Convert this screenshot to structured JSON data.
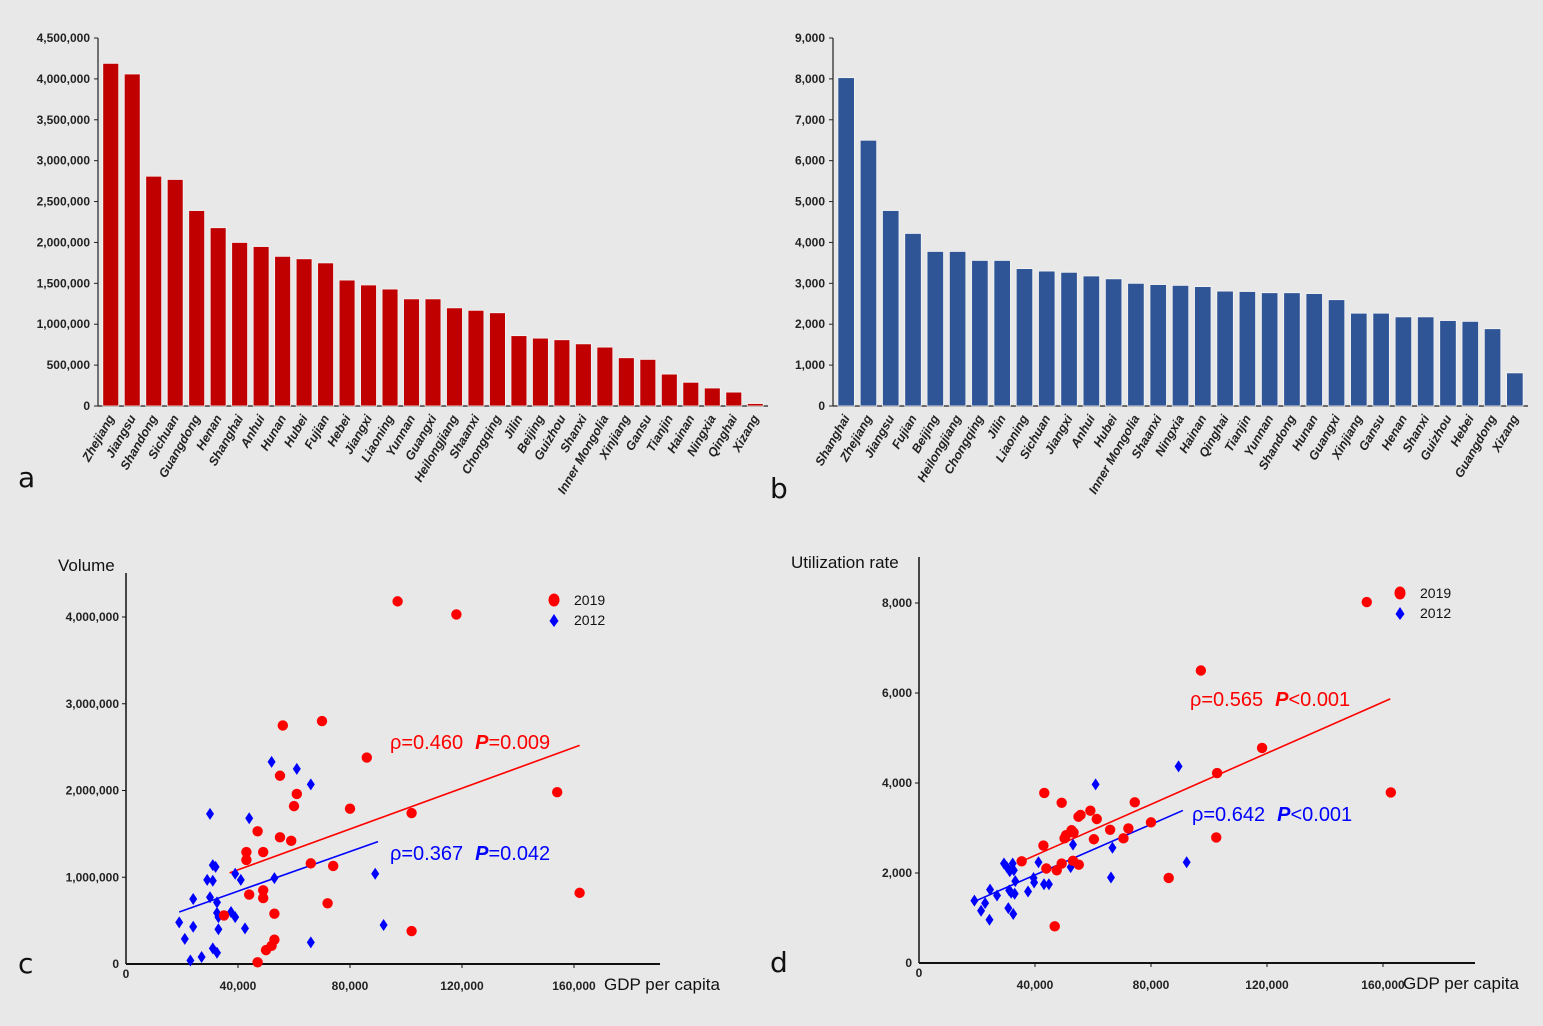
{
  "colors": {
    "background": "#e8e8e8",
    "bar_a": "#c00000",
    "bar_b": "#2f5597",
    "series_2019": "#ff0000",
    "series_2012": "#0000ff"
  },
  "chart_data": [
    {
      "panel": "a",
      "type": "bar",
      "ylim": [
        0,
        4500000
      ],
      "yticks": [
        "0",
        "500,000",
        "1,000,000",
        "1,500,000",
        "2,000,000",
        "2,500,000",
        "3,000,000",
        "3,500,000",
        "4,000,000",
        "4,500,000"
      ],
      "categories": [
        "Zhejiang",
        "Jiangsu",
        "Shandong",
        "Sichuan",
        "Guangdong",
        "Henan",
        "Shanghai",
        "Anhui",
        "Hunan",
        "Hubei",
        "Fujian",
        "Hebei",
        "Jiangxi",
        "Liaoning",
        "Yunnan",
        "Guangxi",
        "Heilongjiang",
        "Shaanxi",
        "Chongqing",
        "Jilin",
        "Beijing",
        "Guizhou",
        "Shanxi",
        "Inner Mongolia",
        "Xinjiang",
        "Gansu",
        "Tianjin",
        "Hainan",
        "Ningxia",
        "Qinghai",
        "Xizang"
      ],
      "values": [
        4190000,
        4060000,
        2810000,
        2770000,
        2390000,
        2180000,
        2000000,
        1950000,
        1830000,
        1800000,
        1750000,
        1540000,
        1480000,
        1430000,
        1310000,
        1310000,
        1200000,
        1170000,
        1140000,
        860000,
        830000,
        810000,
        760000,
        720000,
        590000,
        570000,
        390000,
        290000,
        220000,
        170000,
        30000
      ],
      "color": "#c00000"
    },
    {
      "panel": "b",
      "type": "bar",
      "ylim": [
        0,
        9000
      ],
      "yticks": [
        "0",
        "1,000",
        "2,000",
        "3,000",
        "4,000",
        "5,000",
        "6,000",
        "7,000",
        "8,000",
        "9,000"
      ],
      "categories": [
        "Shanghai",
        "Zhejiang",
        "Jiangsu",
        "Fujian",
        "Beijing",
        "Heilongjiang",
        "Chongqing",
        "Jilin",
        "Liaoning",
        "Sichuan",
        "Jiangxi",
        "Anhui",
        "Hubei",
        "Inner Mongolia",
        "Shaanxi",
        "Ningxia",
        "Hainan",
        "Qinghai",
        "Tianjin",
        "Yunnan",
        "Shandong",
        "Hunan",
        "Guangxi",
        "Xinjiang",
        "Gansu",
        "Henan",
        "Shanxi",
        "Guizhou",
        "Hebei",
        "Guangdong",
        "Xizang"
      ],
      "values": [
        8030,
        6500,
        4780,
        4220,
        3780,
        3780,
        3560,
        3560,
        3360,
        3300,
        3270,
        3180,
        3110,
        3000,
        2970,
        2950,
        2920,
        2810,
        2800,
        2770,
        2770,
        2750,
        2600,
        2270,
        2270,
        2180,
        2180,
        2090,
        2070,
        1890,
        810
      ],
      "color": "#2f5597"
    },
    {
      "panel": "c",
      "type": "scatter",
      "ylabel": "Volume",
      "xlabel": "GDP per capita",
      "xlim": [
        0,
        190000
      ],
      "ylim": [
        0,
        4500000
      ],
      "xticks": [
        "0",
        "40,000",
        "80,000",
        "120,000",
        "160,000"
      ],
      "yticks": [
        "0",
        "1,000,000",
        "2,000,000",
        "3,000,000",
        "4,000,000"
      ],
      "legend_position": "top-right",
      "series": [
        {
          "name": "2019",
          "marker": "circle",
          "color": "#ff0000",
          "points": [
            [
              97000,
              4180000
            ],
            [
              118000,
              4030000
            ],
            [
              70000,
              2800000
            ],
            [
              56000,
              2750000
            ],
            [
              86000,
              2380000
            ],
            [
              55000,
              2170000
            ],
            [
              61000,
              1960000
            ],
            [
              60000,
              1820000
            ],
            [
              80000,
              1790000
            ],
            [
              154000,
              1980000
            ],
            [
              102000,
              1740000
            ],
            [
              47000,
              1530000
            ],
            [
              55000,
              1460000
            ],
            [
              59000,
              1420000
            ],
            [
              43000,
              1290000
            ],
            [
              49000,
              1290000
            ],
            [
              43000,
              1200000
            ],
            [
              66000,
              1160000
            ],
            [
              74000,
              1130000
            ],
            [
              49000,
              850000
            ],
            [
              49000,
              760000
            ],
            [
              44000,
              800000
            ],
            [
              162000,
              820000
            ],
            [
              72000,
              700000
            ],
            [
              35000,
              560000
            ],
            [
              53000,
              580000
            ],
            [
              102000,
              380000
            ],
            [
              53000,
              280000
            ],
            [
              52000,
              210000
            ],
            [
              50000,
              160000
            ],
            [
              47000,
              20000
            ]
          ],
          "trend": [
            [
              37000,
              1050000
            ],
            [
              162000,
              2520000
            ]
          ],
          "annotation": {
            "rho": "ρ=0.460",
            "p_label": "P",
            "p_value": "=0.009"
          }
        },
        {
          "name": "2012",
          "marker": "diamond",
          "color": "#0000ff",
          "points": [
            [
              52000,
              2330000
            ],
            [
              61000,
              2250000
            ],
            [
              66000,
              2070000
            ],
            [
              30000,
              1730000
            ],
            [
              44000,
              1680000
            ],
            [
              31000,
              1140000
            ],
            [
              32000,
              1120000
            ],
            [
              29000,
              970000
            ],
            [
              31000,
              960000
            ],
            [
              39000,
              1040000
            ],
            [
              41000,
              970000
            ],
            [
              53000,
              990000
            ],
            [
              89000,
              1040000
            ],
            [
              24000,
              750000
            ],
            [
              30000,
              770000
            ],
            [
              32500,
              710000
            ],
            [
              19000,
              480000
            ],
            [
              24000,
              430000
            ],
            [
              32500,
              590000
            ],
            [
              33000,
              540000
            ],
            [
              37500,
              600000
            ],
            [
              39000,
              540000
            ],
            [
              33000,
              400000
            ],
            [
              42500,
              410000
            ],
            [
              92000,
              450000
            ],
            [
              21000,
              290000
            ],
            [
              66000,
              250000
            ],
            [
              31000,
              180000
            ],
            [
              32500,
              130000
            ],
            [
              27000,
              80000
            ],
            [
              23000,
              40000
            ]
          ],
          "trend": [
            [
              19000,
              600000
            ],
            [
              90000,
              1410000
            ]
          ],
          "annotation": {
            "rho": "ρ=0.367",
            "p_label": "P",
            "p_value": "=0.042"
          }
        }
      ]
    },
    {
      "panel": "d",
      "type": "scatter",
      "ylabel": "Utilization rate",
      "xlabel": "GDP per capita",
      "xlim": [
        0,
        190000
      ],
      "ylim": [
        0,
        9000
      ],
      "xticks": [
        "0",
        "40,000",
        "80,000",
        "120,000",
        "160,000"
      ],
      "yticks": [
        "0",
        "2,000",
        "4,000",
        "6,000",
        "8,000"
      ],
      "legend_position": "top-right",
      "series": [
        {
          "name": "2019",
          "marker": "circle",
          "color": "#ff0000",
          "points": [
            [
              154400,
              8020
            ],
            [
              97200,
              6500
            ],
            [
              118300,
              4780
            ],
            [
              102800,
              4220
            ],
            [
              162700,
              3790
            ],
            [
              43200,
              3780
            ],
            [
              49200,
              3560
            ],
            [
              74400,
              3570
            ],
            [
              59100,
              3385
            ],
            [
              55700,
              3290
            ],
            [
              55000,
              3250
            ],
            [
              61300,
              3200
            ],
            [
              80000,
              3125
            ],
            [
              52600,
              2950
            ],
            [
              53300,
              2900
            ],
            [
              65900,
              2960
            ],
            [
              72200,
              2990
            ],
            [
              50200,
              2770
            ],
            [
              50700,
              2840
            ],
            [
              60300,
              2750
            ],
            [
              70500,
              2770
            ],
            [
              102500,
              2790
            ],
            [
              42900,
              2610
            ],
            [
              35400,
              2260
            ],
            [
              49200,
              2210
            ],
            [
              53100,
              2270
            ],
            [
              55100,
              2185
            ],
            [
              43900,
              2100
            ],
            [
              47500,
              2060
            ],
            [
              86100,
              1890
            ],
            [
              46800,
              815
            ]
          ],
          "trend": [
            [
              35400,
              2260
            ],
            [
              162500,
              5870
            ]
          ],
          "annotation": {
            "rho": "ρ=0.565",
            "p_label": "P",
            "p_value": "<0.001"
          }
        },
        {
          "name": "2012",
          "marker": "diamond",
          "color": "#0000ff",
          "points": [
            [
              89500,
              4370
            ],
            [
              60900,
              3970
            ],
            [
              53100,
              2630
            ],
            [
              66700,
              2560
            ],
            [
              92300,
              2240
            ],
            [
              41200,
              2240
            ],
            [
              29300,
              2210
            ],
            [
              30300,
              2130
            ],
            [
              32300,
              2210
            ],
            [
              31300,
              2040
            ],
            [
              32700,
              2060
            ],
            [
              52300,
              2130
            ],
            [
              66200,
              1900
            ],
            [
              33200,
              1820
            ],
            [
              39500,
              1890
            ],
            [
              39700,
              1790
            ],
            [
              43100,
              1750
            ],
            [
              44800,
              1750
            ],
            [
              24500,
              1630
            ],
            [
              31100,
              1615
            ],
            [
              33000,
              1540
            ],
            [
              37600,
              1590
            ],
            [
              26900,
              1500
            ],
            [
              31800,
              1560
            ],
            [
              19100,
              1385
            ],
            [
              22800,
              1330
            ],
            [
              21400,
              1160
            ],
            [
              30800,
              1220
            ],
            [
              32500,
              1090
            ],
            [
              24300,
              960
            ]
          ],
          "trend": [
            [
              19900,
              1390
            ],
            [
              91000,
              3390
            ]
          ],
          "annotation": {
            "rho": "ρ=0.642",
            "p_label": "P",
            "p_value": "<0.001"
          }
        }
      ]
    }
  ]
}
